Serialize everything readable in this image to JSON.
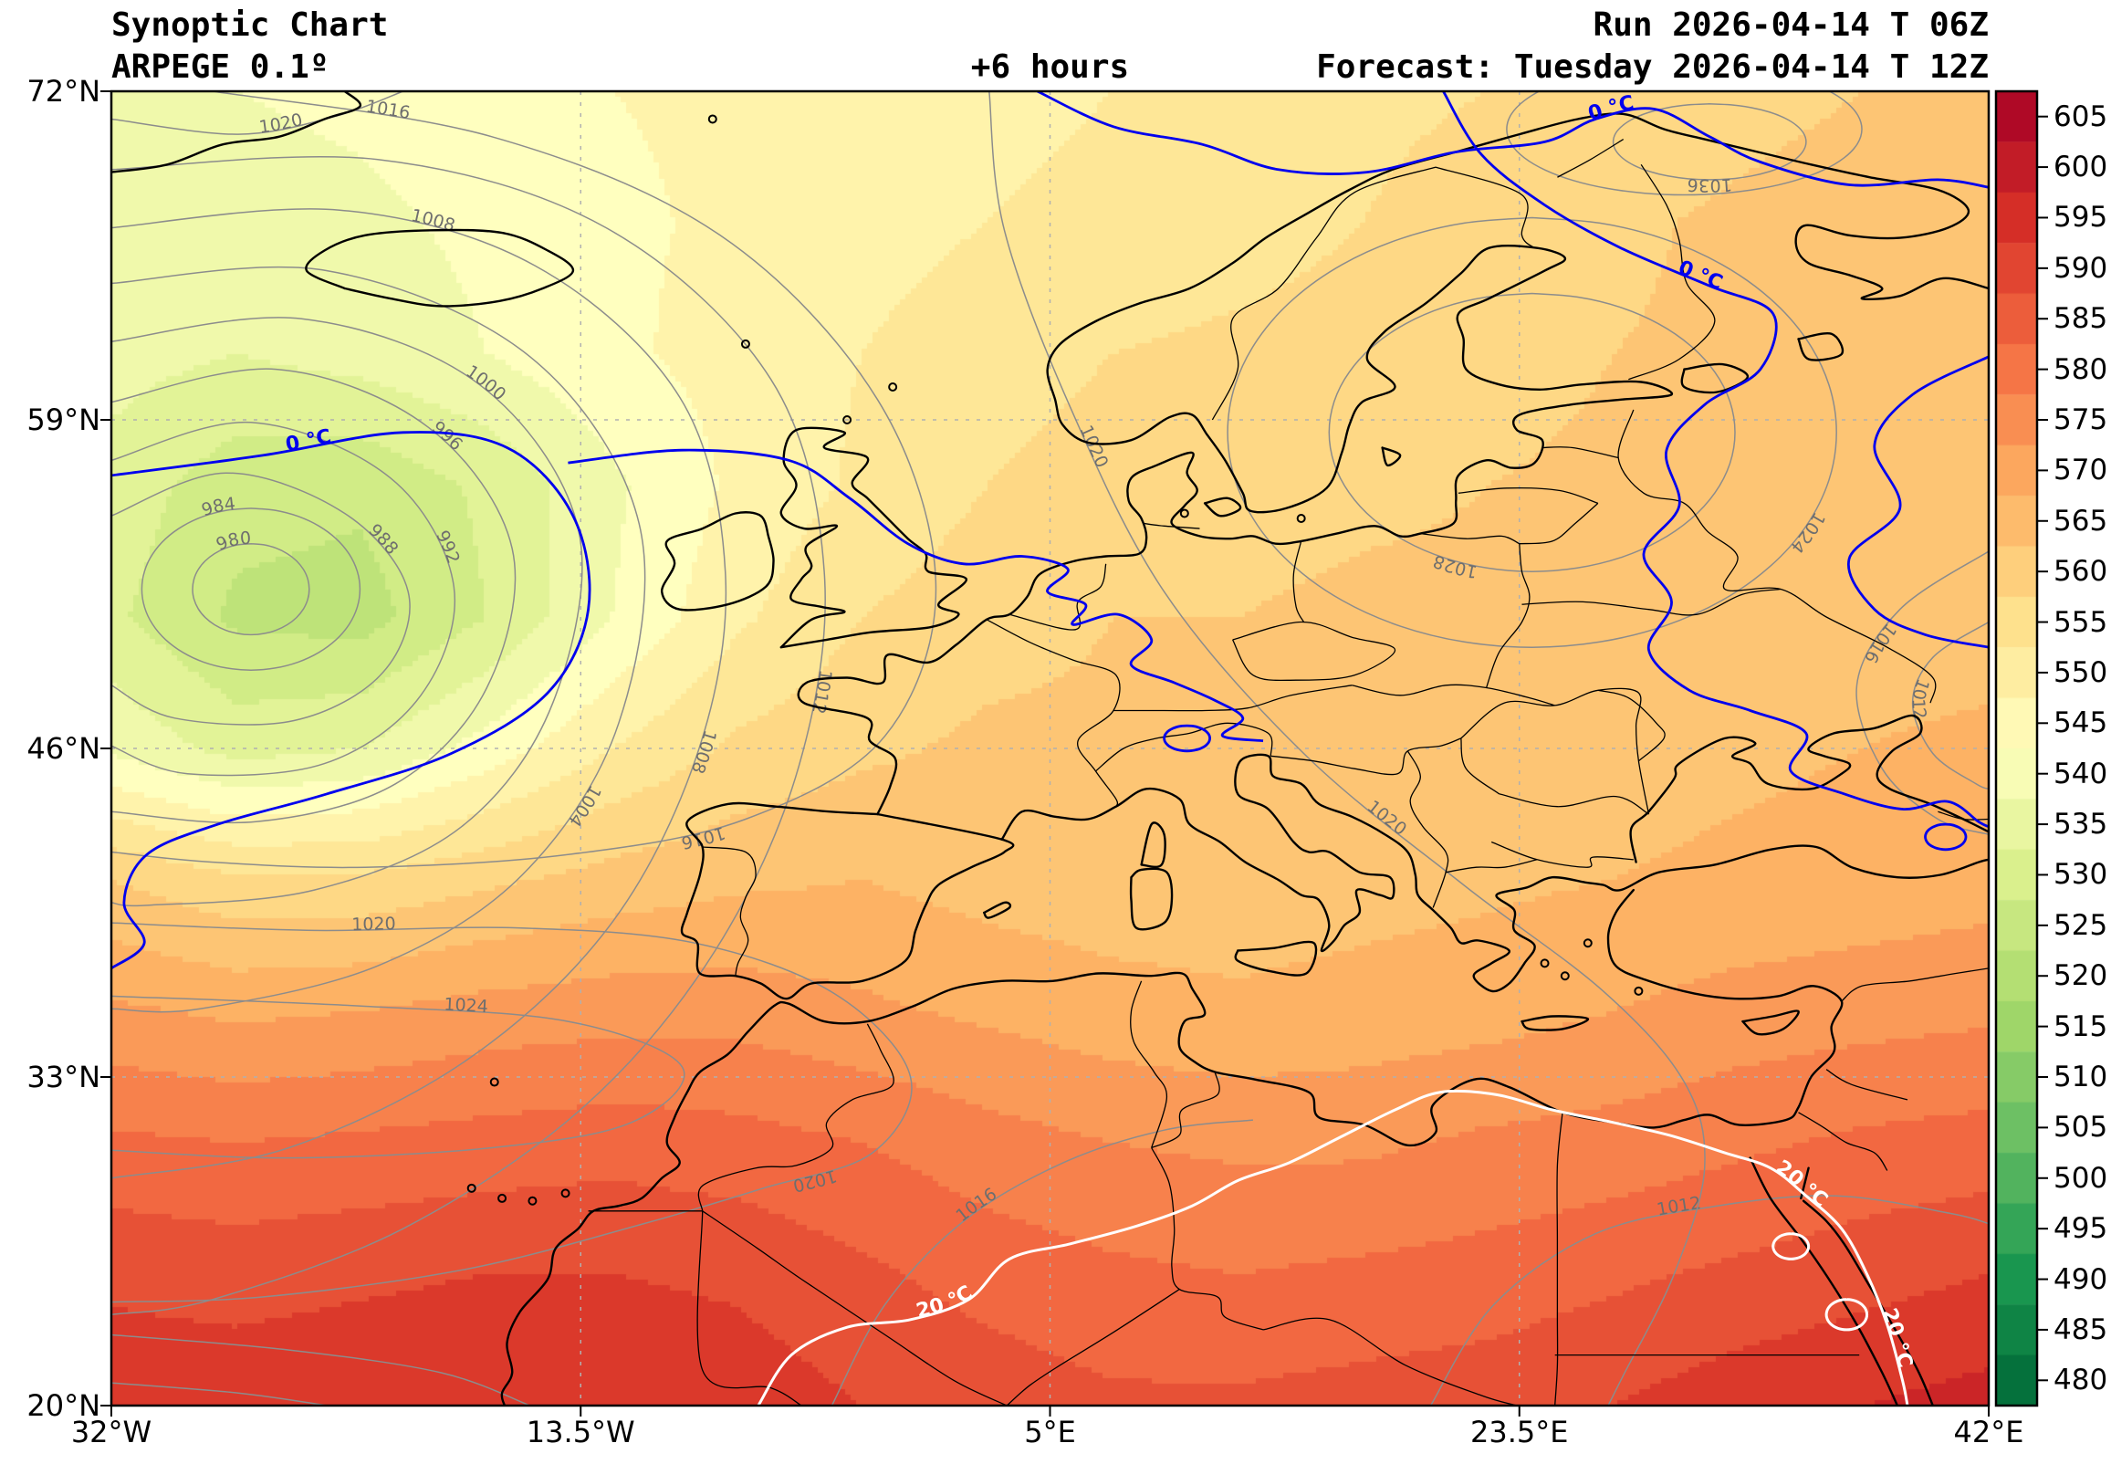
{
  "header": {
    "title": "Synoptic Chart",
    "model": "ARPEGE 0.1º",
    "lead": "+6 hours",
    "run": "Run 2026-04-14 T 06Z",
    "forecast": "Forecast: Tuesday 2026-04-14 T 12Z"
  },
  "axes": {
    "x_ticks": [
      "32°W",
      "13.5°W",
      "5°E",
      "23.5°E",
      "42°E"
    ],
    "x_tick_lons": [
      -32,
      -13.5,
      5,
      23.5,
      42
    ],
    "y_ticks": [
      "72°N",
      "59°N",
      "46°N",
      "33°N",
      "20°N"
    ],
    "y_tick_lats": [
      72,
      59,
      46,
      33,
      20
    ],
    "lon_range": [
      -32,
      42
    ],
    "lat_range": [
      20,
      72
    ],
    "grid_lons": [
      -13.5,
      5,
      23.5
    ],
    "grid_lats": [
      33,
      46,
      59
    ]
  },
  "colorbar": {
    "ticks": [
      605,
      600,
      595,
      590,
      585,
      580,
      575,
      570,
      565,
      560,
      555,
      550,
      545,
      540,
      535,
      530,
      525,
      520,
      515,
      510,
      505,
      500,
      495,
      490,
      485,
      480
    ],
    "vmin": 477.5,
    "vmax": 607.5,
    "stops": [
      {
        "v": 607.5,
        "c": "#a50026"
      },
      {
        "v": 594.5,
        "c": "#d73027"
      },
      {
        "v": 581.5,
        "c": "#f46d43"
      },
      {
        "v": 568.5,
        "c": "#fdae61"
      },
      {
        "v": 555.5,
        "c": "#fee08b"
      },
      {
        "v": 542.5,
        "c": "#ffffbf"
      },
      {
        "v": 529.5,
        "c": "#d9ef8b"
      },
      {
        "v": 516.5,
        "c": "#a6d96a"
      },
      {
        "v": 503.5,
        "c": "#66bd63"
      },
      {
        "v": 490.5,
        "c": "#1a9850"
      },
      {
        "v": 477.5,
        "c": "#006837"
      }
    ]
  },
  "isobars": {
    "color": "#8c8c8c",
    "values": [
      980,
      984,
      988,
      992,
      996,
      1000,
      1004,
      1008,
      1012,
      1016,
      1020,
      1024,
      1028,
      1032,
      1036
    ]
  },
  "isotherms": {
    "zero_label": "0 °C",
    "zero_color": "#0000ee",
    "twenty_label": "20 °C",
    "twenty_color": "#ffffff"
  },
  "chart_data": {
    "type": "heatmap",
    "band_interval": 5,
    "lons": [
      -32,
      -27.07,
      -22.13,
      -17.2,
      -12.27,
      -7.33,
      -2.4,
      2.53,
      7.47,
      12.4,
      17.33,
      22.27,
      27.2,
      32.13,
      37.07,
      42
    ],
    "lats": [
      72,
      66.8,
      61.6,
      56.4,
      51.2,
      46,
      40.8,
      35.6,
      30.4,
      25.2,
      20
    ],
    "values": [
      [
        539,
        540,
        541,
        543,
        545,
        546,
        547,
        548,
        550,
        552,
        554,
        555,
        556,
        558,
        560,
        561
      ],
      [
        537,
        538,
        539,
        541,
        544,
        546,
        548,
        550,
        552,
        553,
        555,
        557,
        559,
        561,
        563,
        562
      ],
      [
        537,
        535,
        537,
        540,
        544,
        547,
        550,
        553,
        555,
        556,
        557,
        558,
        560,
        561,
        562,
        562
      ],
      [
        533,
        527,
        526,
        531,
        539,
        546,
        551,
        555,
        557,
        558,
        559,
        560,
        561,
        561,
        562,
        562
      ],
      [
        531,
        524,
        523,
        530,
        540,
        549,
        555,
        558,
        560,
        560,
        561,
        561,
        562,
        562,
        563,
        563
      ],
      [
        539,
        533,
        535,
        542,
        550,
        556,
        559,
        561,
        561,
        561,
        561,
        562,
        563,
        564,
        565,
        566
      ],
      [
        560,
        556,
        556,
        559,
        562,
        564,
        565,
        563,
        562,
        562,
        563,
        564,
        565,
        566,
        567,
        568
      ],
      [
        571,
        569,
        570,
        572,
        573,
        573,
        571,
        569,
        567,
        566,
        567,
        568,
        570,
        572,
        573,
        574
      ],
      [
        581,
        580,
        581,
        582,
        583,
        582,
        580,
        577,
        575,
        574,
        574,
        576,
        577,
        579,
        581,
        582
      ],
      [
        589,
        588,
        589,
        590,
        590,
        589,
        586,
        583,
        581,
        580,
        581,
        582,
        584,
        586,
        588,
        590
      ],
      [
        593,
        593,
        594,
        595,
        595,
        593,
        590,
        588,
        586,
        586,
        587,
        588,
        590,
        593,
        595,
        597
      ]
    ]
  }
}
